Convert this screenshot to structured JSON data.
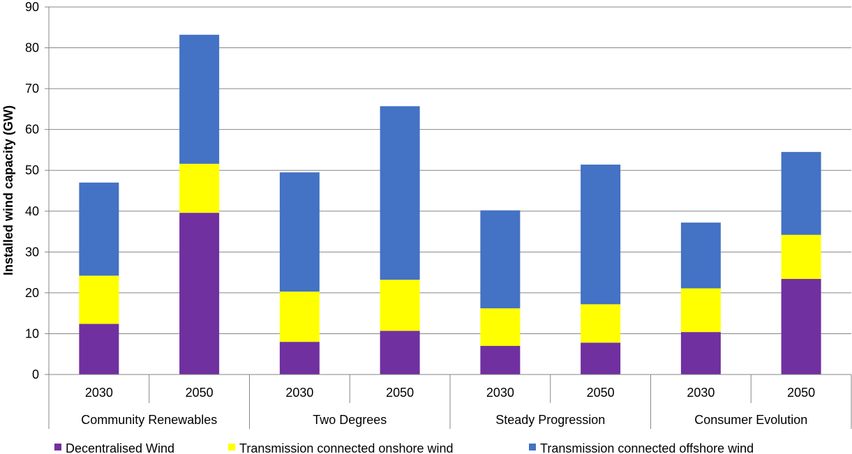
{
  "chart_data": {
    "type": "bar",
    "stacked": true,
    "ylabel": "Installed wind capacity (GW)",
    "xlabel": "",
    "ylim": [
      0,
      90
    ],
    "yticks": [
      0,
      10,
      20,
      30,
      40,
      50,
      60,
      70,
      80,
      90
    ],
    "grid": true,
    "legend_position": "bottom",
    "groups": [
      {
        "label": "Community Renewables",
        "categories": [
          "2030",
          "2050"
        ]
      },
      {
        "label": "Two Degrees",
        "categories": [
          "2030",
          "2050"
        ]
      },
      {
        "label": "Steady Progression",
        "categories": [
          "2030",
          "2050"
        ]
      },
      {
        "label": "Consumer Evolution",
        "categories": [
          "2030",
          "2050"
        ]
      }
    ],
    "series": [
      {
        "name": "Decentralised Wind",
        "color": "#7030A0",
        "values": [
          12.4,
          39.6,
          8.0,
          10.7,
          7.0,
          7.8,
          10.4,
          23.4
        ]
      },
      {
        "name": "Transmission connected onshore wind",
        "color": "#FFFF00",
        "values": [
          11.8,
          12.0,
          12.3,
          12.5,
          9.2,
          9.4,
          10.7,
          10.8
        ]
      },
      {
        "name": "Transmission connected offshore wind",
        "color": "#4472C4",
        "values": [
          22.8,
          31.6,
          29.2,
          42.5,
          24.0,
          34.2,
          16.1,
          20.3
        ]
      }
    ]
  }
}
